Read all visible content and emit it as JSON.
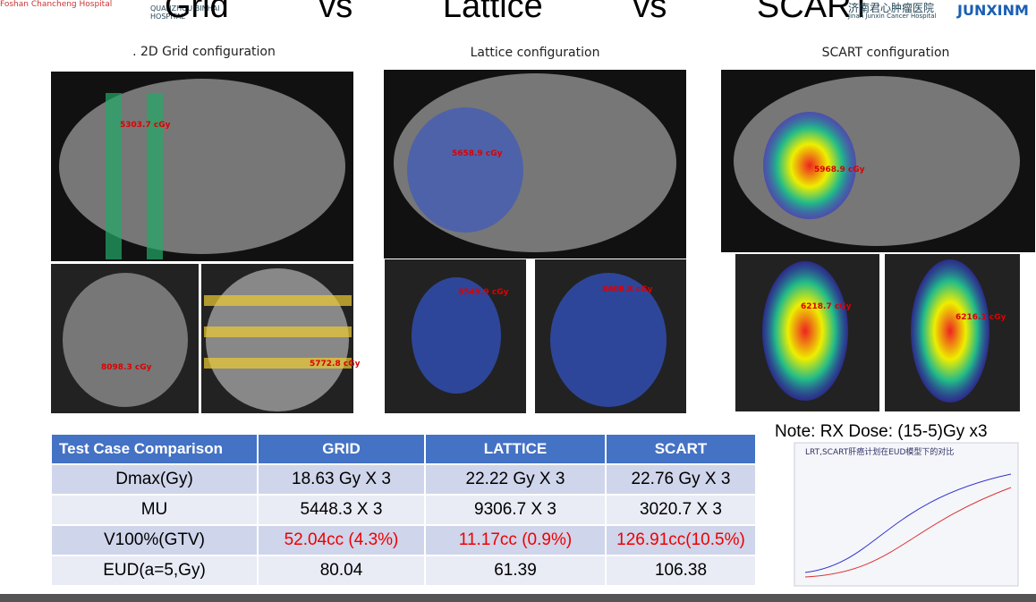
{
  "header": {
    "title": "Grid vs Lattice vs SCART",
    "logos": [
      "Foshan Chancheng Hospital",
      "QUANZHOU BINHAI HOSPITAL",
      "济南君心肿瘤医院",
      "Jinan Junxin Cancer Hospital",
      "JUNXINM"
    ]
  },
  "panels": [
    {
      "title": ". 2D Grid configuration",
      "doses": [
        "5303.7 cGy",
        "8098.3 cGy",
        "5772.8 cGy"
      ]
    },
    {
      "title": "Lattice configuration",
      "doses": [
        "5658.9 cGy",
        "8549.9 cGy",
        "8608.8 cGy"
      ]
    },
    {
      "title": "SCART configuration",
      "doses": [
        "5968.9 cGy",
        "6218.7 cGy",
        "6216.1 cGy"
      ]
    }
  ],
  "table": {
    "header": [
      "Test Case Comparison",
      "GRID",
      "LATTICE",
      "SCART"
    ],
    "rows": [
      [
        "Dmax(Gy)",
        "18.63 Gy X 3",
        "22.22 Gy X 3",
        "22.76 Gy X 3"
      ],
      [
        "MU",
        "5448.3 X 3",
        "9306.7 X 3",
        "3020.7 X 3"
      ],
      [
        "V100%(GTV)",
        "52.04cc (4.3%)",
        "11.17cc (0.9%)",
        "126.91cc(10.5%)"
      ],
      [
        "EUD(a=5,Gy)",
        "80.04",
        "61.39",
        "106.38"
      ]
    ]
  },
  "note": "Note:  RX Dose: (15-5)Gy x3",
  "figure": {
    "title": "LRT,SCART肝癌计划在EUD模型下的对比"
  }
}
